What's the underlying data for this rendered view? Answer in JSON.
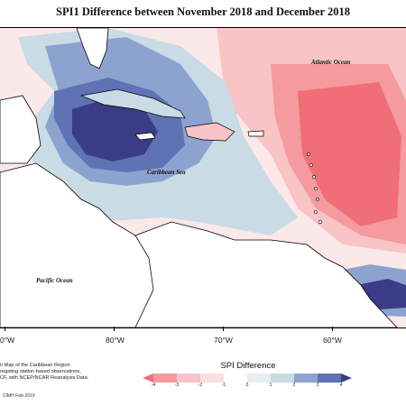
{
  "title": "SPI1 Difference between November 2018 and December 2018",
  "labels": {
    "atlantic": "Atlantic Ocean",
    "caribbean": "Caribbean Sea",
    "pacific": "Pacific Ocean"
  },
  "longitudes": [
    "0°W",
    "80°W",
    "70°W",
    "60°W"
  ],
  "caption": {
    "line1": "n Map of the Caribbean Region",
    "line2": "regating station based observations,",
    "line3": "CF, with NCEP/NCAR Reanalysis Data."
  },
  "credit": "CIMH Feb-2019",
  "legend": {
    "title": "SPI Difference",
    "ticks": [
      "-4",
      "-3",
      "-2",
      "-1",
      "0",
      "1",
      "2",
      "3",
      "4"
    ],
    "colors": [
      "#f06e78",
      "#f59a9e",
      "#f8c4c6",
      "#fbe0e1",
      "#ffffff",
      "#c9dbe4",
      "#8da3cf",
      "#5f72b4",
      "#3b3c86"
    ]
  }
}
